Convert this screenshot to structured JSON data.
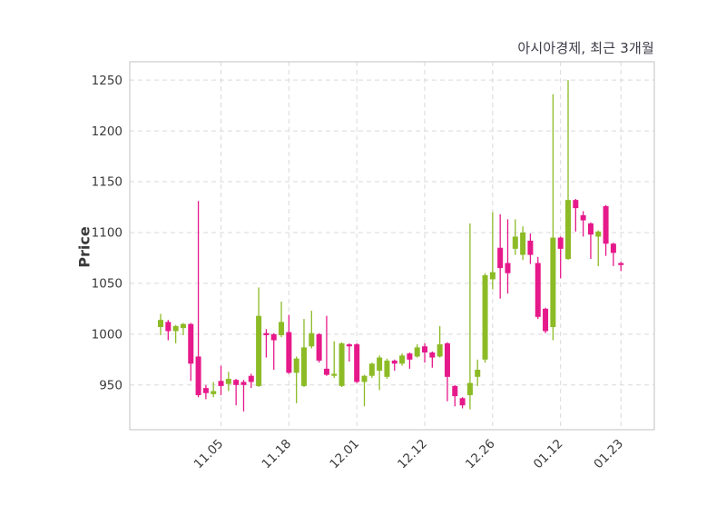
{
  "chart": {
    "title": "아시아경제, 최근 3개월",
    "ylabel": "Price"
  },
  "chart_data": {
    "type": "candlestick",
    "title": "아시아경제, 최근 3개월",
    "xlabel": "",
    "ylabel": "Price",
    "legend": null,
    "grid": true,
    "y_ticks": [
      950,
      1000,
      1050,
      1100,
      1150,
      1200,
      1250
    ],
    "ylim": [
      906,
      1268
    ],
    "x_tick_labels": [
      "11.05",
      "11.18",
      "12.01",
      "12.12",
      "12.26",
      "01.12",
      "01.23"
    ],
    "x_tick_indices": [
      8,
      17,
      26,
      35,
      44,
      53,
      61
    ],
    "colors": {
      "up": "#8CBB26",
      "down": "#E6198A",
      "grid": "#d9d9d9",
      "border": "#cccccc",
      "tick_text": "#3a3a3a",
      "title_text": "#3b3b47",
      "background": "#ffffff"
    },
    "candles_format": [
      "open",
      "high",
      "low",
      "close"
    ],
    "candles": [
      [
        1007,
        1020,
        999,
        1014
      ],
      [
        1012,
        1014,
        994,
        1003
      ],
      [
        1003,
        1009,
        991,
        1008
      ],
      [
        1006,
        1011,
        999,
        1010
      ],
      [
        1010,
        1011,
        954,
        971
      ],
      [
        978,
        1131,
        938,
        940
      ],
      [
        947,
        950,
        936,
        942
      ],
      [
        941,
        953,
        938,
        944
      ],
      [
        954,
        969,
        940,
        949
      ],
      [
        951,
        963,
        944,
        956
      ],
      [
        955,
        956,
        930,
        950
      ],
      [
        953,
        955,
        924,
        950
      ],
      [
        959,
        961,
        947,
        953
      ],
      [
        949,
        1046,
        948,
        1018
      ],
      [
        1001,
        1005,
        977,
        999
      ],
      [
        1000,
        1001,
        965,
        994
      ],
      [
        999,
        1032,
        997,
        1012
      ],
      [
        1002,
        1019,
        961,
        962
      ],
      [
        962,
        978,
        932,
        976
      ],
      [
        949,
        1015,
        948,
        987
      ],
      [
        988,
        1023,
        986,
        1001
      ],
      [
        1000,
        1001,
        972,
        974
      ],
      [
        966,
        1018,
        959,
        960
      ],
      [
        959,
        993,
        957,
        961
      ],
      [
        949,
        992,
        948,
        991
      ],
      [
        990,
        991,
        973,
        988
      ],
      [
        990,
        991,
        952,
        953
      ],
      [
        953,
        960,
        929,
        959
      ],
      [
        959,
        972,
        957,
        971
      ],
      [
        964,
        979,
        945,
        977
      ],
      [
        958,
        976,
        956,
        974
      ],
      [
        974,
        975,
        964,
        971
      ],
      [
        971,
        981,
        969,
        979
      ],
      [
        981,
        982,
        966,
        975
      ],
      [
        978,
        990,
        977,
        987
      ],
      [
        988,
        991,
        972,
        982
      ],
      [
        982,
        983,
        967,
        977
      ],
      [
        978,
        1008,
        977,
        990
      ],
      [
        991,
        992,
        934,
        958
      ],
      [
        949,
        950,
        929,
        939
      ],
      [
        937,
        938,
        927,
        930
      ],
      [
        940,
        1109,
        926,
        952
      ],
      [
        958,
        975,
        949,
        965
      ],
      [
        975,
        1060,
        972,
        1058
      ],
      [
        1054,
        1120,
        1044,
        1061
      ],
      [
        1085,
        1118,
        1035,
        1065
      ],
      [
        1070,
        1113,
        1040,
        1060
      ],
      [
        1084,
        1113,
        1078,
        1096
      ],
      [
        1078,
        1106,
        1073,
        1100
      ],
      [
        1092,
        1099,
        1069,
        1078
      ],
      [
        1070,
        1076,
        1015,
        1017
      ],
      [
        1025,
        1026,
        1001,
        1003
      ],
      [
        1007,
        1236,
        994,
        1095
      ],
      [
        1095,
        1096,
        1055,
        1084
      ],
      [
        1074,
        1250,
        1073,
        1132
      ],
      [
        1132,
        1133,
        1101,
        1124
      ],
      [
        1117,
        1121,
        1096,
        1112
      ],
      [
        1109,
        1110,
        1074,
        1098
      ],
      [
        1096,
        1102,
        1067,
        1101
      ],
      [
        1126,
        1127,
        1077,
        1089
      ],
      [
        1089,
        1090,
        1067,
        1080
      ],
      [
        1070,
        1071,
        1062,
        1068
      ]
    ]
  }
}
